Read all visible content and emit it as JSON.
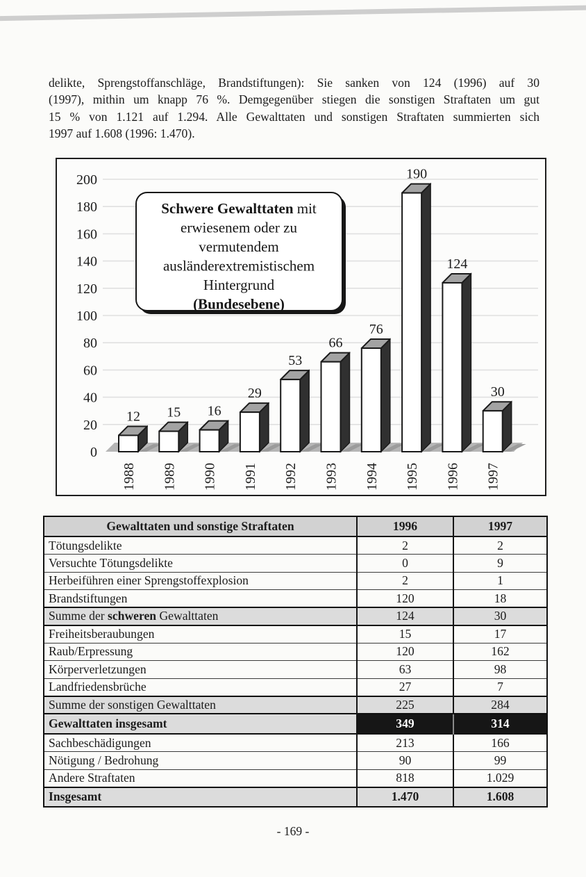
{
  "page": {
    "paragraph_lines": [
      "delikte, Sprengstoffanschläge, Brandstiftungen): Sie sanken von 124 (1996) auf 30",
      "(1997), mithin um knapp 76 %. Demgegenüber stiegen die sonstigen Straftaten um gut",
      "15 % von 1.121 auf 1.294. Alle Gewalttaten und sonstigen Straftaten summierten sich",
      "1997 auf 1.608 (1996: 1.470)."
    ],
    "footer": {
      "page_number": "- 169 -"
    }
  },
  "chart_data": {
    "type": "bar",
    "style": "3d-column",
    "title_box_lines": [
      [
        {
          "text": "Schwere Gewalttaten",
          "bold": true
        },
        {
          "text": " mit",
          "bold": false
        }
      ],
      [
        {
          "text": "erwiesenem oder zu",
          "bold": false
        }
      ],
      [
        {
          "text": "vermutendem",
          "bold": false
        }
      ],
      [
        {
          "text": "ausländerextremistischem",
          "bold": false
        }
      ],
      [
        {
          "text": "Hintergrund",
          "bold": false
        }
      ],
      [
        {
          "text": "(Bundesebene)",
          "bold": true
        }
      ]
    ],
    "categories": [
      "1988",
      "1989",
      "1990",
      "1991",
      "1992",
      "1993",
      "1994",
      "1995",
      "1996",
      "1997"
    ],
    "values": [
      12,
      15,
      16,
      29,
      53,
      66,
      76,
      190,
      124,
      30
    ],
    "y_ticks": [
      0,
      20,
      40,
      60,
      80,
      100,
      120,
      140,
      160,
      180,
      200
    ],
    "ylim": [
      0,
      200
    ],
    "grid": true,
    "legend": "none",
    "colors": {
      "bar_front": "#ffffff",
      "bar_side": "#303030",
      "bar_top": "#a3a3a3",
      "floor": "#b6b6b6",
      "bar_shadow": "#9b9b9b",
      "gridline": "#e0e0e0",
      "outline": "#1a1a1a"
    }
  },
  "table": {
    "header": {
      "col1": "Gewalttaten und sonstige Straftaten",
      "col2": "1996",
      "col3": "1997"
    },
    "rows": [
      {
        "label": "Tötungsdelikte",
        "v1996": "2",
        "v1997": "2",
        "style": "plain"
      },
      {
        "label": "Versuchte Tötungsdelikte",
        "v1996": "0",
        "v1997": "9",
        "style": "plain"
      },
      {
        "label": "Herbeiführen einer Sprengstoffexplosion",
        "v1996": "2",
        "v1997": "1",
        "style": "plain"
      },
      {
        "label": "Brandstiftungen",
        "v1996": "120",
        "v1997": "18",
        "style": "plain"
      },
      {
        "label": "Summe der schweren Gewalttaten",
        "bold_part": "schweren",
        "v1996": "124",
        "v1997": "30",
        "style": "subtotal"
      },
      {
        "label": "Freiheitsberaubungen",
        "v1996": "15",
        "v1997": "17",
        "style": "plain"
      },
      {
        "label": "Raub/Erpressung",
        "v1996": "120",
        "v1997": "162",
        "style": "plain"
      },
      {
        "label": "Körperverletzungen",
        "v1996": "63",
        "v1997": "98",
        "style": "plain"
      },
      {
        "label": "Landfriedensbrüche",
        "v1996": "27",
        "v1997": "7",
        "style": "plain"
      },
      {
        "label": "Summe der sonstigen Gewalttaten",
        "v1996": "225",
        "v1997": "284",
        "style": "subtotal"
      },
      {
        "label": "Gewalttaten insgesamt",
        "v1996": "349",
        "v1997": "314",
        "style": "total"
      },
      {
        "label": "Sachbeschädigungen",
        "v1996": "213",
        "v1997": "166",
        "style": "plain"
      },
      {
        "label": "Nötigung / Bedrohung",
        "v1996": "90",
        "v1997": "99",
        "style": "plain"
      },
      {
        "label": "Andere Straftaten",
        "v1996": "818",
        "v1997": "1.029",
        "style": "plain"
      },
      {
        "label": "Insgesamt",
        "v1996": "1.470",
        "v1997": "1.608",
        "style": "grand"
      }
    ]
  }
}
